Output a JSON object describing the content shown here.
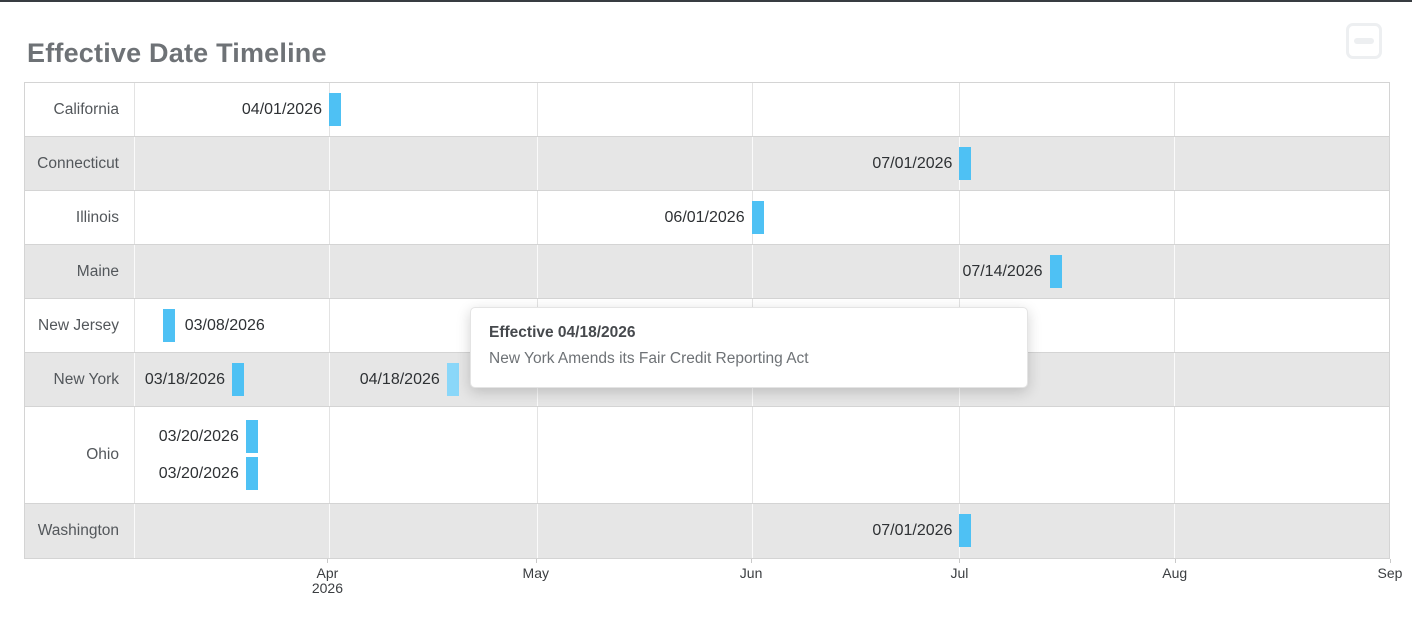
{
  "header": {
    "title": "Effective Date Timeline"
  },
  "collapse_button": {
    "icon": "minus-square"
  },
  "tooltip": {
    "title": "Effective 04/18/2026",
    "body": "New York Amends its Fair Credit Reporting Act"
  },
  "colors": {
    "bar": "#4ec1f4",
    "bar_hover": "#8ad7f9",
    "row_alt_bg": "#e6e6e6",
    "grid_border": "#d4d4d4"
  },
  "chart_data": {
    "type": "timeline",
    "title": "Effective Date Timeline",
    "x_start": "2026-03-04",
    "x_end": "2026-09-01",
    "legend": "none",
    "ticks": [
      {
        "label": "Apr",
        "sublabel": "2026",
        "date": "2026-04-01"
      },
      {
        "label": "May",
        "date": "2026-05-01"
      },
      {
        "label": "Jun",
        "date": "2026-06-01"
      },
      {
        "label": "Jul",
        "date": "2026-07-01"
      },
      {
        "label": "Aug",
        "date": "2026-08-01"
      },
      {
        "label": "Sep",
        "date": "2026-09-01"
      }
    ],
    "rows": [
      {
        "state": "California",
        "events": [
          {
            "date": "2026-04-01",
            "label": "04/01/2026",
            "side": "left"
          }
        ]
      },
      {
        "state": "Connecticut",
        "events": [
          {
            "date": "2026-07-01",
            "label": "07/01/2026",
            "side": "left"
          }
        ]
      },
      {
        "state": "Illinois",
        "events": [
          {
            "date": "2026-06-01",
            "label": "06/01/2026",
            "side": "left"
          }
        ]
      },
      {
        "state": "Maine",
        "events": [
          {
            "date": "2026-07-14",
            "label": "07/14/2026",
            "side": "left"
          }
        ]
      },
      {
        "state": "New Jersey",
        "events": [
          {
            "date": "2026-03-08",
            "label": "03/08/2026",
            "side": "right"
          }
        ]
      },
      {
        "state": "New York",
        "events": [
          {
            "date": "2026-03-18",
            "label": "03/18/2026",
            "side": "left"
          },
          {
            "date": "2026-04-18",
            "label": "04/18/2026",
            "side": "left",
            "hover": true
          }
        ]
      },
      {
        "state": "Ohio",
        "lanes": 2,
        "events": [
          {
            "date": "2026-03-20",
            "label": "03/20/2026",
            "side": "left",
            "lane": 0
          },
          {
            "date": "2026-03-20",
            "label": "03/20/2026",
            "side": "left",
            "lane": 1
          }
        ]
      },
      {
        "state": "Washington",
        "events": [
          {
            "date": "2026-07-01",
            "label": "07/01/2026",
            "side": "left"
          }
        ]
      }
    ]
  }
}
